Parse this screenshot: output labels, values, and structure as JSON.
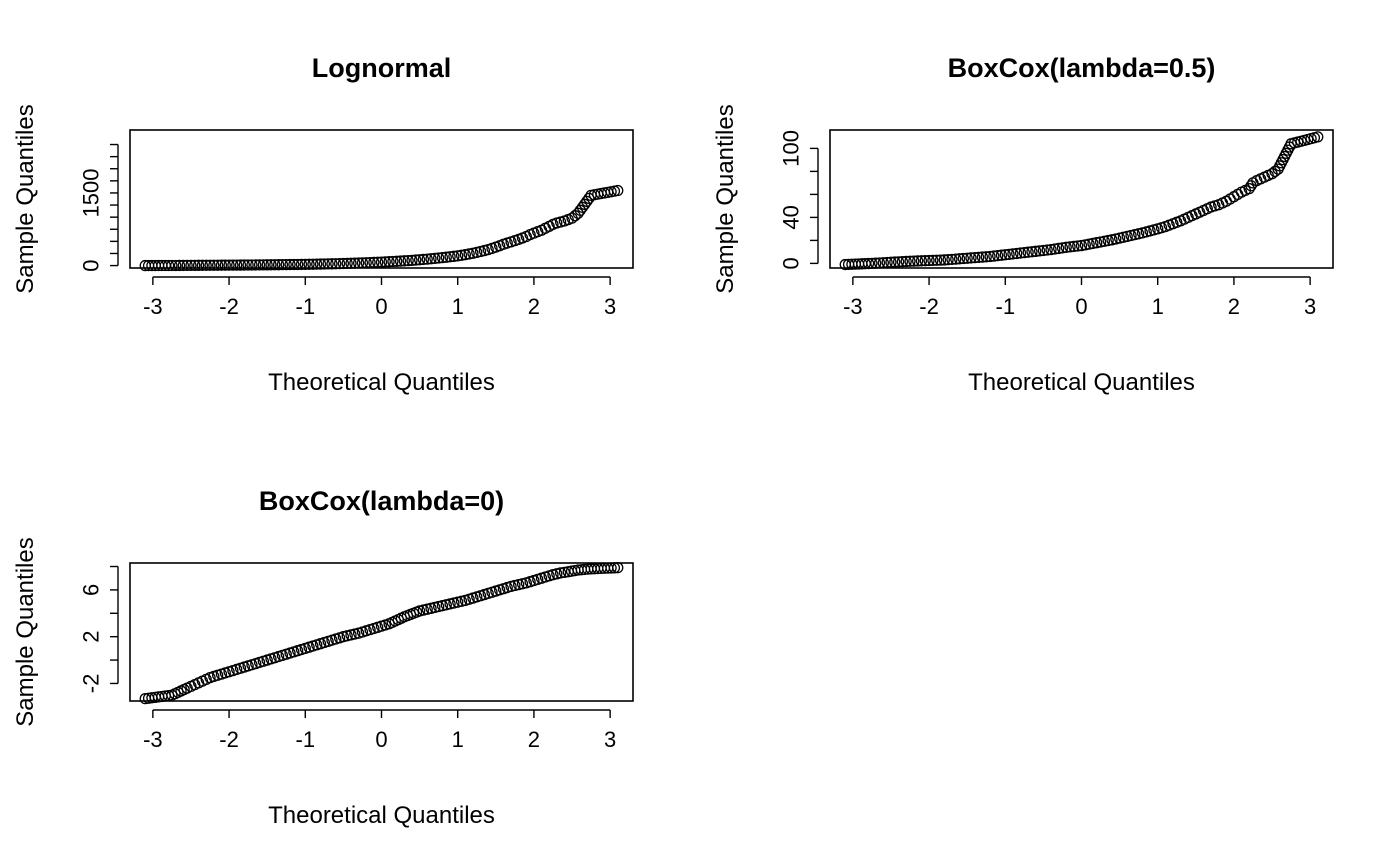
{
  "chart_data": [
    {
      "type": "scatter",
      "title": "Lognormal",
      "xlabel": "Theoretical Quantiles",
      "ylabel": "Sample Quantiles",
      "xlim": [
        -3.3,
        3.3
      ],
      "ylim": [
        -50,
        2800
      ],
      "xticks": [
        -3,
        -2,
        -1,
        0,
        1,
        2,
        3
      ],
      "yticks": [
        0,
        250,
        500,
        750,
        1000,
        1250,
        1500,
        1750,
        2000,
        2250,
        2500
      ],
      "ytick_labels": [
        "0",
        "",
        "",
        "",
        "",
        "",
        "1500",
        "",
        "",
        "",
        ""
      ],
      "grid": false,
      "series": [
        {
          "x": [
            -3.1,
            -2.75,
            -2.6,
            -2.5,
            -2.4,
            -2.3,
            -2.2,
            -2.1,
            -2.0,
            -1.8,
            -1.6,
            -1.4,
            -1.2,
            -1.0,
            -0.8,
            -0.6,
            -0.4,
            -0.2,
            0.0,
            0.2,
            0.4,
            0.6,
            0.8,
            1.0,
            1.1,
            1.2,
            1.3,
            1.4,
            1.5,
            1.6,
            1.7,
            1.8,
            1.85,
            1.9,
            1.95,
            2.0,
            2.05,
            2.1,
            2.15,
            2.2,
            2.25,
            2.3,
            2.4,
            2.5,
            2.58,
            2.75,
            3.1
          ],
          "y": [
            0,
            2,
            3,
            4,
            5,
            6,
            7,
            8,
            9,
            11,
            14,
            17,
            21,
            25,
            31,
            38,
            47,
            58,
            72,
            88,
            108,
            133,
            164,
            200,
            225,
            255,
            290,
            330,
            380,
            440,
            490,
            540,
            570,
            600,
            640,
            670,
            700,
            730,
            770,
            810,
            850,
            880,
            920,
            980,
            1080,
            1450,
            1550
          ]
        }
      ]
    },
    {
      "type": "scatter",
      "title": "BoxCox(lambda=0.5)",
      "xlabel": "Theoretical Quantiles",
      "ylabel": "Sample Quantiles",
      "xlim": [
        -3.3,
        3.3
      ],
      "ylim": [
        -4,
        116
      ],
      "xticks": [
        -3,
        -2,
        -1,
        0,
        1,
        2,
        3
      ],
      "yticks": [
        0,
        20,
        40,
        60,
        80,
        100
      ],
      "ytick_labels": [
        "0",
        "",
        "40",
        "",
        "",
        "100"
      ],
      "grid": false,
      "series": [
        {
          "x": [
            -3.1,
            -2.75,
            -2.6,
            -2.5,
            -2.4,
            -2.3,
            -2.2,
            -2.0,
            -1.8,
            -1.6,
            -1.4,
            -1.2,
            -1.0,
            -0.8,
            -0.6,
            -0.4,
            -0.2,
            0.0,
            0.2,
            0.4,
            0.6,
            0.8,
            1.0,
            1.1,
            1.2,
            1.3,
            1.4,
            1.5,
            1.6,
            1.7,
            1.8,
            1.85,
            1.9,
            1.95,
            2.0,
            2.05,
            2.1,
            2.15,
            2.2,
            2.25,
            2.3,
            2.4,
            2.5,
            2.58,
            2.75,
            3.1
          ],
          "y": [
            -1,
            0,
            0.5,
            1,
            1.3,
            1.7,
            2,
            2.5,
            3,
            4,
            5,
            6,
            7.5,
            9,
            10.5,
            12,
            14,
            15.5,
            18,
            20.5,
            23.5,
            26.5,
            30,
            32,
            34.5,
            37,
            40,
            43,
            46,
            49,
            51,
            52.5,
            54,
            56,
            58,
            60,
            62,
            63.5,
            65,
            70,
            72,
            75,
            78,
            82,
            104,
            110
          ]
        }
      ]
    },
    {
      "type": "scatter",
      "title": "BoxCox(lambda=0)",
      "xlabel": "Theoretical Quantiles",
      "ylabel": "Sample Quantiles",
      "xlim": [
        -3.3,
        3.3
      ],
      "ylim": [
        -3.5,
        8.3
      ],
      "xticks": [
        -3,
        -2,
        -1,
        0,
        1,
        2,
        3
      ],
      "yticks": [
        -2,
        0,
        2,
        4,
        6,
        8
      ],
      "ytick_labels": [
        "-2",
        "",
        "2",
        "",
        "6",
        ""
      ],
      "grid": false,
      "series": [
        {
          "x": [
            -3.1,
            -2.75,
            -2.55,
            -2.45,
            -2.35,
            -2.25,
            -2.15,
            -2.05,
            -1.9,
            -1.7,
            -1.5,
            -1.3,
            -1.1,
            -0.9,
            -0.7,
            -0.5,
            -0.3,
            -0.1,
            0.1,
            0.3,
            0.5,
            0.7,
            0.9,
            1.1,
            1.3,
            1.5,
            1.7,
            1.9,
            2.05,
            2.15,
            2.25,
            2.35,
            2.45,
            2.58,
            2.75,
            3.1
          ],
          "y": [
            -3.3,
            -3.0,
            -2.4,
            -2.1,
            -1.8,
            -1.5,
            -1.3,
            -1.1,
            -0.8,
            -0.4,
            0.0,
            0.4,
            0.8,
            1.2,
            1.6,
            2.0,
            2.3,
            2.7,
            3.1,
            3.7,
            4.2,
            4.5,
            4.8,
            5.1,
            5.5,
            5.9,
            6.3,
            6.6,
            6.9,
            7.1,
            7.3,
            7.45,
            7.55,
            7.7,
            7.8,
            7.9
          ]
        }
      ]
    }
  ]
}
